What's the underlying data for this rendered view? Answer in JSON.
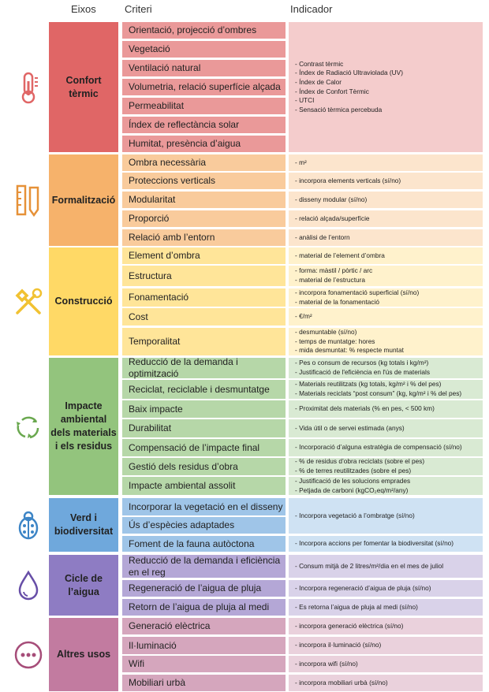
{
  "headers": {
    "eixos": "Eixos",
    "criteri": "Criteri",
    "indicador": "Indicador"
  },
  "groups": [
    {
      "eix": "Confort tèrmic",
      "icon": "thermometer-icon",
      "colors": {
        "eix": "#e06666",
        "crit": "#ea9999",
        "ind": "#f4cccc"
      },
      "criteria": [
        "Orientació, projecció d’ombres",
        "Vegetació",
        "Ventilació natural",
        "Volumetria, relació superfície alçada",
        "Permeabilitat",
        "Índex de reflectància solar",
        "Humitat, presència d’aigua"
      ],
      "indicators": [
        [
          "- Contrast tèrmic",
          "- Índex de Radiació Ultraviolada (UV)",
          "- Índex de Calor",
          "- Índex de Confort Tèrmic",
          "- UTCI",
          "- Sensació tèrmica percebuda"
        ]
      ]
    },
    {
      "eix": "Formalització",
      "icon": "ruler-pencil-icon",
      "colors": {
        "eix": "#f6b26b",
        "crit": "#f9cb9c",
        "ind": "#fce5cd"
      },
      "criteria": [
        "Ombra necessària",
        "Proteccions verticals",
        "Modularitat",
        "Proporció",
        "Relació amb l’entorn"
      ],
      "indicators": [
        [
          "- m²"
        ],
        [
          "- incorpora elements verticals  (sí/no)"
        ],
        [
          "- disseny modular (sí/no)"
        ],
        [
          "- relació alçada/superfície"
        ],
        [
          "- anàlisi de l’entorn"
        ]
      ]
    },
    {
      "eix": "Construcció",
      "icon": "tools-icon",
      "colors": {
        "eix": "#ffd966",
        "crit": "#ffe599",
        "ind": "#fff2cc"
      },
      "criteria": [
        "Element d’ombra",
        "Estructura",
        "Fonamentació",
        "Cost",
        "Temporalitat"
      ],
      "indicators": [
        [
          "- material de l’element d’ombra"
        ],
        [
          "- forma: màstil / pòrtic / arc",
          "- material de l’estructura"
        ],
        [
          "- incorpora fonamentació superficial (sí/no)",
          "- material de la fonamentació"
        ],
        [
          "- €/m²"
        ],
        [
          "- desmuntable (sí/no)",
          "- temps de muntatge: hores",
          "- mida desmuntat: % respecte muntat"
        ]
      ]
    },
    {
      "eix": "Impacte ambiental dels materials i els residus",
      "icon": "recycle-icon",
      "colors": {
        "eix": "#93c47d",
        "crit": "#b6d7a8",
        "ind": "#d9ead3"
      },
      "criteria": [
        "Reducció de la demanda i optimització",
        "Reciclat, reciclable i desmuntatge",
        "Baix impacte",
        "Durabilitat",
        "Compensació de l’impacte final",
        "Gestió dels residus d’obra",
        "Impacte ambiental assolit"
      ],
      "indicators": [
        [
          "- Pes o consum de recursos (kg totals i kg/m²)",
          "- Justificació de l'eficiència en l'ús de materials"
        ],
        [
          "- Materials reutilitzats (kg totals, kg/m² i % del pes)",
          "- Materials reciclats “post consum” (kg, kg/m² i % del pes)"
        ],
        [
          "- Proximitat dels materials (% en pes, < 500 km)"
        ],
        [
          "- Vida útil o de servei estimada (anys)"
        ],
        [
          "- Incorporació d’alguna estratègia de compensació (sí/no)"
        ],
        [
          "- % de residus d’obra reciclats (sobre el pes)",
          "- % de terres reutilitzades (sobre el pes)"
        ],
        [
          "- Justificació de les solucions emprades",
          "- Petjada de carboni (kgCO₂eq/m²/any)"
        ]
      ]
    },
    {
      "eix": "Verd i biodiversitat",
      "icon": "ladybug-icon",
      "colors": {
        "eix": "#6fa8dc",
        "crit": "#9fc5e8",
        "ind": "#cfe2f3"
      },
      "criteria": [
        "Incorporar la vegetació en el disseny",
        "Ús d’espècies adaptades",
        "Foment de la fauna autòctona"
      ],
      "indicators": [
        [
          "- Incorpora vegetació a l’ombratge (sí/no)"
        ],
        [
          "- Incorpora accions per fomentar la biodiversitat (sí/no)"
        ]
      ]
    },
    {
      "eix": "Cicle de l’aigua",
      "icon": "water-drop-icon",
      "colors": {
        "eix": "#8e7cc3",
        "crit": "#b4a7d6",
        "ind": "#d9d2e9"
      },
      "criteria": [
        "Reducció de la demanda i eficiència en el reg",
        "Regeneració de l’aigua de pluja",
        "Retorn de l’aigua de pluja al medi"
      ],
      "indicators": [
        [
          "- Consum mitjà de 2 litres/m²/dia en el mes de juliol"
        ],
        [
          "- Incorpora regeneració d’aigua de pluja (sí/no)"
        ],
        [
          "- Es retorna l’aigua de pluja al medi (sí/no)"
        ]
      ]
    },
    {
      "eix": "Altres usos",
      "icon": "more-icon",
      "colors": {
        "eix": "#c27ba0",
        "crit": "#d5a6bd",
        "ind": "#ead1dc"
      },
      "criteria": [
        "Generació elèctrica",
        "Il·luminació",
        "Wifi",
        "Mobiliari urbà"
      ],
      "indicators": [
        [
          "- incorpora generació elèctrica (sí/no)"
        ],
        [
          "- incorpora il·luminació (sí/no)"
        ],
        [
          "- incorpora wifi (sí/no)"
        ],
        [
          "- incorpora mobiliari urbà (sí/no)"
        ]
      ]
    }
  ]
}
